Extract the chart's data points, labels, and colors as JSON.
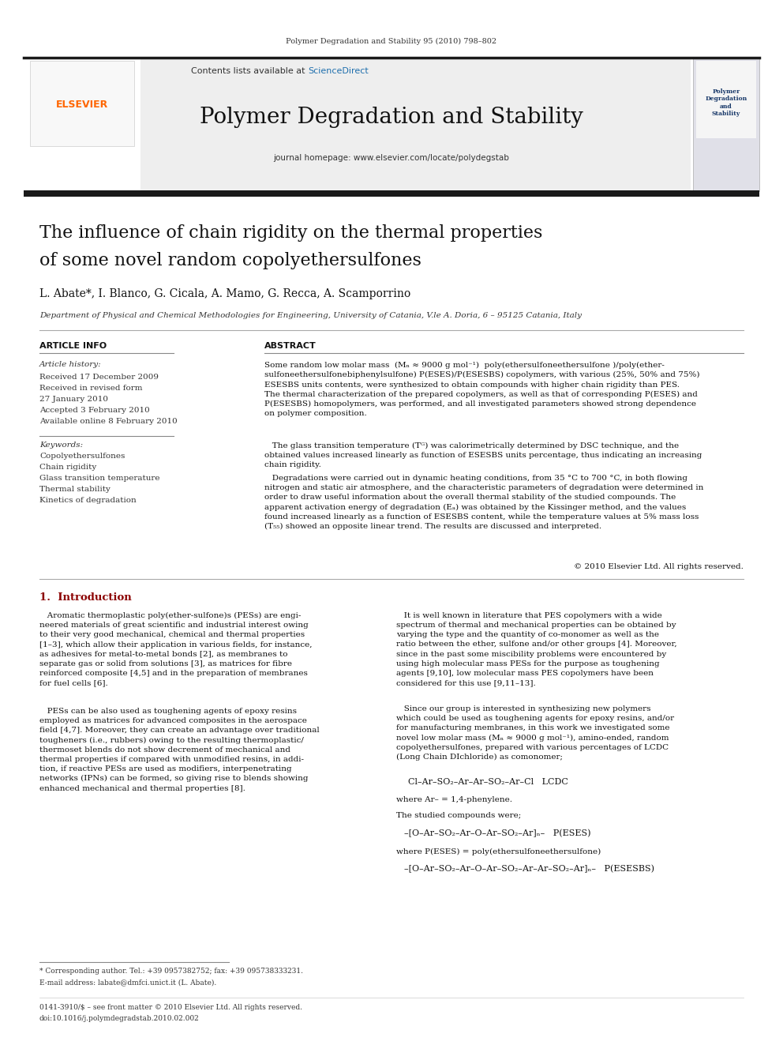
{
  "journal_header_text": "Polymer Degradation and Stability 95 (2010) 798–802",
  "journal_name": "Polymer Degradation and Stability",
  "sciencedirect_color": "#1f6fad",
  "journal_homepage": "journal homepage: www.elsevier.com/locate/polydegstab",
  "elsevier_color": "#FF6600",
  "article_title_line1": "The influence of chain rigidity on the thermal properties",
  "article_title_line2": "of some novel random copolyethersulfones",
  "authors": "L. Abate*, I. Blanco, G. Cicala, A. Mamo, G. Recca, A. Scamporrino",
  "affiliation": "Department of Physical and Chemical Methodologies for Engineering, University of Catania, V.le A. Doria, 6 – 95125 Catania, Italy",
  "article_info_label": "ARTICLE INFO",
  "abstract_label": "ABSTRACT",
  "article_history_label": "Article history:",
  "received_line1": "Received 17 December 2009",
  "received_line2": "Received in revised form",
  "received_line3": "27 January 2010",
  "accepted_line": "Accepted 3 February 2010",
  "available_line": "Available online 8 February 2010",
  "keywords_label": "Keywords:",
  "keyword1": "Copolyethersulfones",
  "keyword2": "Chain rigidity",
  "keyword3": "Glass transition temperature",
  "keyword4": "Thermal stability",
  "keyword5": "Kinetics of degradation",
  "copyright_line": "© 2010 Elsevier Ltd. All rights reserved.",
  "section1_title": "1.  Introduction",
  "chemical_formula1": "Cl–Ar–SO₂–Ar–Ar–SO₂–Ar–Cl   LCDC",
  "where_Ar": "where Ar– = 1,4-phenylene.",
  "studied_compounds": "The studied compounds were;",
  "polymer1": "–[O–Ar–SO₂–Ar–O–Ar–SO₂–Ar]ₙ–   P(ESES)",
  "where_PESES": "where P(ESES) = poly(ethersulfoneethersulfone)",
  "polymer2": "–[O–Ar–SO₂–Ar–O–Ar–SO₂–Ar–Ar–SO₂–Ar]ₙ–   P(ESESBS)",
  "footnote_star": "* Corresponding author. Tel.: +39 0957382752; fax: +39 095738333231.",
  "footnote_email": "E-mail address: labate@dmfci.unict.it (L. Abate).",
  "footer_issn": "0141-3910/$ – see front matter © 2010 Elsevier Ltd. All rights reserved.",
  "footer_doi": "doi:10.1016/j.polymdegradstab.2010.02.002",
  "bg_color": "#ffffff",
  "text_color": "#000000",
  "sciencedirect_blue": "#1f6fad",
  "orange_color": "#FF6600",
  "dark_bar_color": "#1a1a1a",
  "section_title_color": "#8B0000"
}
